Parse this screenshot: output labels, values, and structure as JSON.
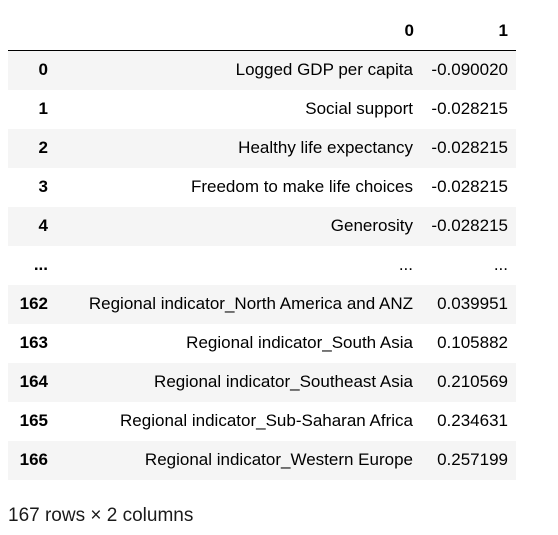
{
  "table": {
    "columns": [
      "0",
      "1"
    ],
    "rows": [
      {
        "index": "0",
        "c0": "Logged GDP per capita",
        "c1": "-0.090020"
      },
      {
        "index": "1",
        "c0": "Social support",
        "c1": "-0.028215"
      },
      {
        "index": "2",
        "c0": "Healthy life expectancy",
        "c1": "-0.028215"
      },
      {
        "index": "3",
        "c0": "Freedom to make life choices",
        "c1": "-0.028215"
      },
      {
        "index": "4",
        "c0": "Generosity",
        "c1": "-0.028215"
      },
      {
        "index": "...",
        "c0": "...",
        "c1": "..."
      },
      {
        "index": "162",
        "c0": "Regional indicator_North America and ANZ",
        "c1": "0.039951"
      },
      {
        "index": "163",
        "c0": "Regional indicator_South Asia",
        "c1": "0.105882"
      },
      {
        "index": "164",
        "c0": "Regional indicator_Southeast Asia",
        "c1": "0.210569"
      },
      {
        "index": "165",
        "c0": "Regional indicator_Sub-Saharan Africa",
        "c1": "0.234631"
      },
      {
        "index": "166",
        "c0": "Regional indicator_Western Europe",
        "c1": "0.257199"
      }
    ]
  },
  "footer": {
    "shape_text": "167 rows × 2 columns"
  }
}
